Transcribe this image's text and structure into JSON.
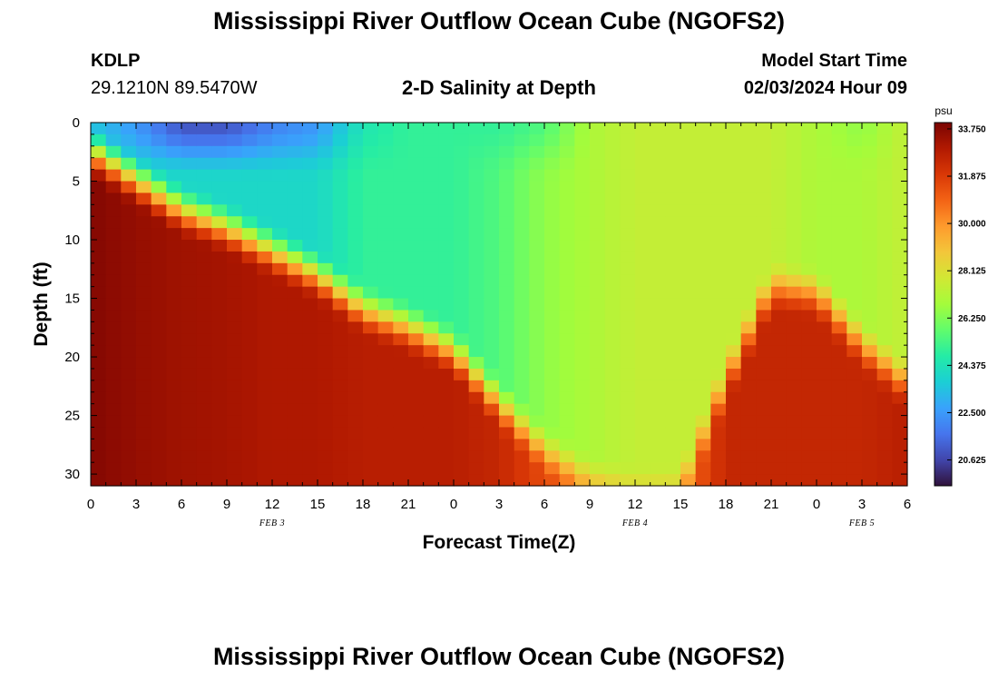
{
  "header": {
    "title": "Mississippi River Outflow Ocean Cube (NGOFS2)",
    "station_id": "KDLP",
    "station_coords": "29.1210N  89.5470W",
    "model_start_label": "Model Start Time",
    "model_start_value": "02/03/2024 Hour 09"
  },
  "footer": {
    "title": "Mississippi River Outflow Ocean Cube (NGOFS2)"
  },
  "chart_data": {
    "type": "heatmap",
    "title": "2-D Salinity at Depth",
    "xlabel": "Forecast Time(Z)",
    "ylabel": "Depth (ft)",
    "x_tick_labels": [
      "0",
      "3",
      "6",
      "9",
      "12",
      "15",
      "18",
      "21",
      "0",
      "3",
      "6",
      "9",
      "12",
      "15",
      "18",
      "21",
      "0",
      "3",
      "6"
    ],
    "x_range_hours": [
      0,
      54
    ],
    "y_ticks": [
      0,
      5,
      10,
      15,
      20,
      25,
      30
    ],
    "y_range": [
      0,
      31
    ],
    "y_inverted": true,
    "day_labels": [
      {
        "text": "FEB 3",
        "hour": 12
      },
      {
        "text": "FEB 4",
        "hour": 36
      },
      {
        "text": "FEB 5",
        "hour": 51
      }
    ],
    "colorbar": {
      "unit": "psu",
      "min": 19.6,
      "max": 34.0,
      "tick_labels": [
        "33.750",
        "31.875",
        "30.000",
        "28.125",
        "26.250",
        "24.375",
        "22.500",
        "20.625"
      ],
      "colors": [
        "#30123b",
        "#4145ab",
        "#4675ed",
        "#39a2fc",
        "#1bcfd4",
        "#24eca6",
        "#61fc6c",
        "#a4fc3b",
        "#d1e834",
        "#f3c63a",
        "#fe9b2d",
        "#f36315",
        "#d93806",
        "#b11901",
        "#7a0402"
      ]
    },
    "profile": {
      "hours": [
        0,
        3,
        6,
        9,
        12,
        15,
        18,
        21,
        24,
        27,
        30,
        33,
        36,
        39,
        42,
        45,
        48,
        51,
        54
      ],
      "halocline_depth_ft": [
        2.5,
        5.0,
        7.5,
        9.0,
        11.0,
        13.0,
        16.0,
        17.5,
        19.5,
        24.0,
        28.0,
        30.5,
        31.5,
        31.5,
        22.0,
        14.0,
        14.5,
        19.0,
        22.5
      ],
      "surface_salinity_psu": [
        23.5,
        22.5,
        21.0,
        21.0,
        22.0,
        22.5,
        24.5,
        25.0,
        25.0,
        25.0,
        25.5,
        27.0,
        27.5,
        27.5,
        27.5,
        27.5,
        27.0,
        26.5,
        27.5
      ],
      "middle_salinity_psu": [
        24.5,
        24.0,
        24.0,
        24.0,
        24.0,
        24.0,
        25.0,
        25.0,
        25.0,
        25.5,
        26.5,
        27.0,
        27.5,
        27.5,
        27.5,
        27.5,
        27.0,
        27.0,
        27.5
      ],
      "bottom_salinity_psu": [
        33.8,
        33.5,
        33.3,
        33.2,
        33.0,
        33.0,
        32.8,
        32.8,
        32.8,
        32.5,
        31.5,
        30.5,
        30.0,
        30.5,
        32.5,
        32.5,
        32.5,
        32.5,
        32.8
      ]
    }
  }
}
